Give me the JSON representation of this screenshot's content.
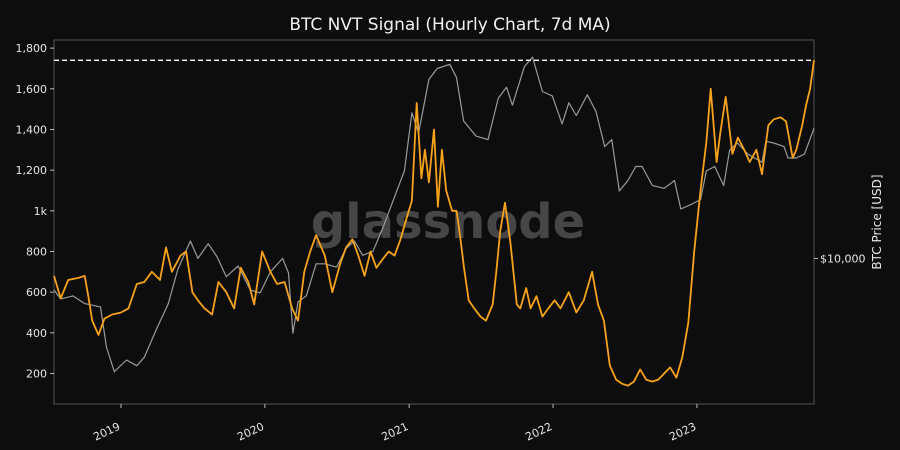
{
  "chart_data": {
    "type": "line",
    "title": "BTC NVT Signal (Hourly Chart, 7d MA)",
    "xlabel": "",
    "ylabel_left": "",
    "ylabel_right": "BTC Price [USD]",
    "watermark": "glassnode",
    "x_ticks": [
      "2019",
      "2020",
      "2021",
      "2022",
      "2023"
    ],
    "x_range": [
      "2018-07-15",
      "2023-10-25"
    ],
    "y_ticks_left": [
      "200",
      "400",
      "600",
      "800",
      "1k",
      "1,200",
      "1,400",
      "1,600",
      "1,800"
    ],
    "y_range_left": [
      50,
      1840
    ],
    "y_tick_right": "$10,000",
    "y_right_scale": "log",
    "reference_line": {
      "value": 1740,
      "style": "dashed",
      "color": "#ffffff"
    },
    "colors": {
      "nvt": "#f7a21b",
      "price": "#9a9a9a",
      "background": "#0d0d0d"
    },
    "series": [
      {
        "key": "nvt",
        "x": [
          "2018-07-15",
          "2018-08-01",
          "2018-08-20",
          "2018-09-15",
          "2018-10-01",
          "2018-10-10",
          "2018-10-20",
          "2018-11-05",
          "2018-11-20",
          "2018-12-10",
          "2019-01-01",
          "2019-01-20",
          "2019-02-10",
          "2019-03-01",
          "2019-03-20",
          "2019-04-10",
          "2019-04-25",
          "2019-05-10",
          "2019-06-01",
          "2019-06-15",
          "2019-07-01",
          "2019-07-15",
          "2019-08-01",
          "2019-08-20",
          "2019-09-05",
          "2019-09-25",
          "2019-10-15",
          "2019-11-01",
          "2019-11-20",
          "2019-12-05",
          "2019-12-25",
          "2020-01-15",
          "2020-02-01",
          "2020-02-20",
          "2020-03-10",
          "2020-03-25",
          "2020-04-10",
          "2020-04-25",
          "2020-05-10",
          "2020-06-01",
          "2020-06-20",
          "2020-07-10",
          "2020-07-25",
          "2020-08-10",
          "2020-08-25",
          "2020-09-10",
          "2020-09-25",
          "2020-10-10",
          "2020-10-25",
          "2020-11-10",
          "2020-11-25",
          "2020-12-10",
          "2020-12-25",
          "2021-01-08",
          "2021-01-20",
          "2021-02-01",
          "2021-02-10",
          "2021-02-20",
          "2021-03-05",
          "2021-03-15",
          "2021-03-25",
          "2021-04-05",
          "2021-04-20",
          "2021-05-01",
          "2021-05-10",
          "2021-05-20",
          "2021-06-01",
          "2021-06-15",
          "2021-07-01",
          "2021-07-15",
          "2021-08-01",
          "2021-08-10",
          "2021-08-20",
          "2021-09-01",
          "2021-09-15",
          "2021-10-01",
          "2021-10-10",
          "2021-10-25",
          "2021-11-05",
          "2021-11-20",
          "2021-12-05",
          "2021-12-20",
          "2022-01-05",
          "2022-01-20",
          "2022-02-10",
          "2022-03-01",
          "2022-03-20",
          "2022-04-10",
          "2022-04-25",
          "2022-05-10",
          "2022-05-25",
          "2022-06-10",
          "2022-06-25",
          "2022-07-10",
          "2022-07-25",
          "2022-08-10",
          "2022-08-25",
          "2022-09-10",
          "2022-09-25",
          "2022-10-10",
          "2022-10-25",
          "2022-11-10",
          "2022-11-25",
          "2022-12-10",
          "2022-12-25",
          "2023-01-10",
          "2023-01-25",
          "2023-02-05",
          "2023-02-20",
          "2023-03-01",
          "2023-03-15",
          "2023-04-01",
          "2023-04-15",
          "2023-05-01",
          "2023-05-15",
          "2023-06-01",
          "2023-06-15",
          "2023-07-01",
          "2023-07-15",
          "2023-08-01",
          "2023-08-15",
          "2023-09-01",
          "2023-09-10",
          "2023-09-25",
          "2023-10-05",
          "2023-10-15",
          "2023-10-25"
        ],
        "y": [
          680,
          570,
          660,
          670,
          680,
          580,
          460,
          390,
          470,
          490,
          500,
          520,
          640,
          650,
          700,
          660,
          820,
          700,
          780,
          800,
          600,
          560,
          520,
          490,
          650,
          600,
          520,
          720,
          650,
          540,
          800,
          700,
          640,
          650,
          520,
          460,
          700,
          800,
          880,
          780,
          600,
          740,
          820,
          860,
          780,
          680,
          800,
          720,
          760,
          800,
          780,
          860,
          960,
          1050,
          1530,
          1160,
          1300,
          1140,
          1400,
          1020,
          1300,
          1100,
          1000,
          1000,
          880,
          720,
          560,
          520,
          480,
          460,
          540,
          700,
          900,
          1040,
          840,
          540,
          520,
          620,
          520,
          580,
          480,
          520,
          560,
          520,
          600,
          500,
          560,
          700,
          540,
          460,
          240,
          170,
          150,
          140,
          160,
          220,
          170,
          160,
          170,
          200,
          230,
          180,
          280,
          450,
          800,
          1100,
          1340,
          1600,
          1240,
          1380,
          1560,
          1280,
          1360,
          1300,
          1240,
          1300,
          1180,
          1420,
          1450,
          1460,
          1440,
          1260,
          1300,
          1420,
          1520,
          1600,
          1740
        ]
      },
      {
        "key": "price",
        "x": [
          "2018-07-15",
          "2018-08-01",
          "2018-09-01",
          "2018-10-01",
          "2018-11-10",
          "2018-11-25",
          "2018-12-15",
          "2019-01-15",
          "2019-02-10",
          "2019-03-01",
          "2019-04-01",
          "2019-05-01",
          "2019-05-25",
          "2019-06-26",
          "2019-07-15",
          "2019-08-10",
          "2019-09-01",
          "2019-09-25",
          "2019-10-25",
          "2019-11-25",
          "2019-12-20",
          "2020-01-15",
          "2020-02-15",
          "2020-03-01",
          "2020-03-12",
          "2020-03-25",
          "2020-04-15",
          "2020-05-10",
          "2020-06-01",
          "2020-07-01",
          "2020-07-25",
          "2020-08-15",
          "2020-09-05",
          "2020-10-01",
          "2020-10-25",
          "2020-11-25",
          "2020-12-20",
          "2021-01-08",
          "2021-01-25",
          "2021-02-20",
          "2021-03-13",
          "2021-04-14",
          "2021-05-01",
          "2021-05-19",
          "2021-06-20",
          "2021-07-20",
          "2021-08-15",
          "2021-09-05",
          "2021-09-20",
          "2021-10-20",
          "2021-11-10",
          "2021-12-05",
          "2021-12-30",
          "2022-01-24",
          "2022-02-10",
          "2022-03-01",
          "2022-03-29",
          "2022-04-20",
          "2022-05-12",
          "2022-05-30",
          "2022-06-18",
          "2022-07-10",
          "2022-07-30",
          "2022-08-15",
          "2022-09-10",
          "2022-10-10",
          "2022-11-05",
          "2022-11-21",
          "2022-12-20",
          "2023-01-10",
          "2023-01-25",
          "2023-02-15",
          "2023-03-10",
          "2023-03-25",
          "2023-04-14",
          "2023-05-10",
          "2023-06-15",
          "2023-06-25",
          "2023-07-15",
          "2023-08-10",
          "2023-08-20",
          "2023-09-10",
          "2023-10-01",
          "2023-10-25"
        ],
        "y": [
          7400,
          6800,
          7000,
          6500,
          6300,
          4300,
          3400,
          3800,
          3600,
          3900,
          5100,
          6500,
          9000,
          11800,
          10000,
          11500,
          10200,
          8400,
          9300,
          7400,
          7200,
          8800,
          10000,
          8700,
          4900,
          6600,
          7000,
          9500,
          9500,
          9200,
          11000,
          11800,
          10300,
          10700,
          13200,
          18000,
          23000,
          40000,
          33000,
          55000,
          61000,
          63500,
          56000,
          37000,
          32000,
          31000,
          46000,
          51000,
          43000,
          62000,
          68000,
          49000,
          47000,
          36000,
          44000,
          39000,
          47500,
          40500,
          29000,
          31000,
          19000,
          21000,
          24000,
          24000,
          20000,
          19500,
          21000,
          16000,
          16800,
          17500,
          23000,
          24000,
          20000,
          28000,
          30000,
          27000,
          25000,
          30500,
          30000,
          29000,
          26000,
          26000,
          27000,
          34500
        ]
      }
    ]
  }
}
